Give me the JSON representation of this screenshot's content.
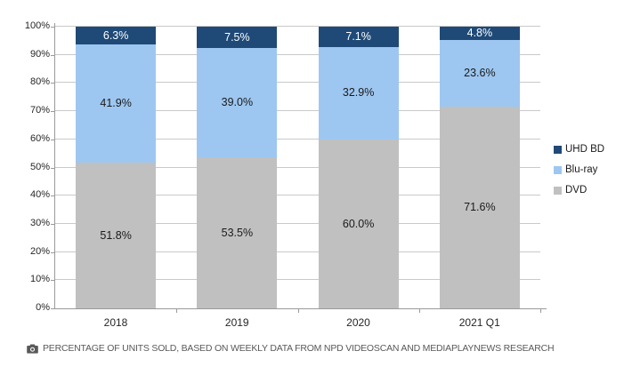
{
  "chart_data": {
    "type": "bar",
    "stacked": true,
    "title": "",
    "categories": [
      "2018",
      "2019",
      "2020",
      "2021 Q1"
    ],
    "series": [
      {
        "name": "DVD",
        "color": "#c0c0c0",
        "label_color": "#1a1a1a",
        "values": [
          51.8,
          53.5,
          60.0,
          71.6
        ]
      },
      {
        "name": "Blu-ray",
        "color": "#9dc7f1",
        "label_color": "#1a1a1a",
        "values": [
          41.9,
          39.0,
          32.9,
          23.6
        ]
      },
      {
        "name": "UHD BD",
        "color": "#1f4a77",
        "label_color": "#ffffff",
        "values": [
          6.3,
          7.5,
          7.1,
          4.8
        ]
      }
    ],
    "value_suffix": "%",
    "ylim": [
      0,
      100
    ],
    "y_tick_labels": [
      "0%",
      "10%",
      "20%",
      "30%",
      "40%",
      "50%",
      "60%",
      "70%",
      "80%",
      "90%",
      "100%"
    ],
    "grid": true,
    "legend_position": "right",
    "legend_order_top_to_bottom": [
      "UHD BD",
      "Blu-ray",
      "DVD"
    ]
  },
  "footer": {
    "icon": "camera-icon",
    "caption": "PERCENTAGE OF UNITS SOLD, BASED ON WEEKLY DATA FROM NPD VIDEOSCAN AND MEDIAPLAYNEWS RESEARCH"
  },
  "colors": {
    "background": "#ffffff",
    "gridline": "#c9c9c9",
    "axis": "#9a9a9a",
    "tick_text": "#262626",
    "footer_text": "#595959"
  }
}
